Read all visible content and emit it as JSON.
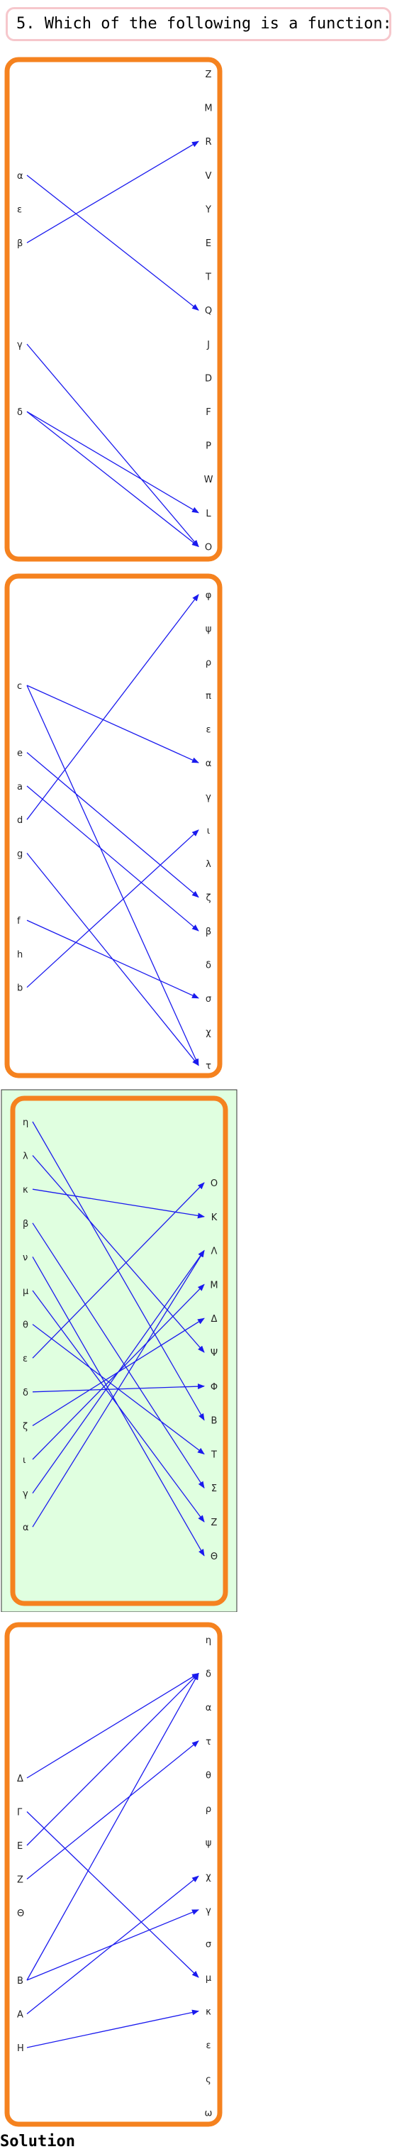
{
  "question": "5. Which of the following is a function:",
  "solution_label": "Solution",
  "colors": {
    "box_border": "#f5821f",
    "arrow": "#1a1aee",
    "highlight_fill": "#e0ffe0",
    "highlight_frame": "#333333"
  },
  "diagrams": [
    {
      "highlighted": false,
      "left": [
        "α",
        "ε",
        "β",
        "",
        "",
        "γ",
        "",
        "δ"
      ],
      "right": [
        "Z",
        "M",
        "R",
        "V",
        "Y",
        "E",
        "T",
        "Q",
        "J",
        "D",
        "F",
        "P",
        "W",
        "L",
        "O"
      ],
      "arrows": [
        [
          "α",
          "Q"
        ],
        [
          "β",
          "R"
        ],
        [
          "γ",
          "O"
        ],
        [
          "δ",
          "L"
        ],
        [
          "δ",
          "O"
        ]
      ]
    },
    {
      "highlighted": false,
      "left": [
        "c",
        "",
        "e",
        "a",
        "d",
        "g",
        "",
        "f",
        "h",
        "b"
      ],
      "right": [
        "φ",
        "ψ",
        "ρ",
        "π",
        "ε",
        "α",
        "γ",
        "ι",
        "λ",
        "ζ",
        "β",
        "δ",
        "σ",
        "χ",
        "τ"
      ],
      "arrows": [
        [
          "c",
          "α"
        ],
        [
          "c",
          "τ"
        ],
        [
          "e",
          "ζ"
        ],
        [
          "a",
          "β"
        ],
        [
          "d",
          "φ"
        ],
        [
          "g",
          "τ"
        ],
        [
          "f",
          "σ"
        ],
        [
          "b",
          "ι"
        ]
      ]
    },
    {
      "highlighted": true,
      "left": [
        "η",
        "λ",
        "κ",
        "β",
        "ν",
        "μ",
        "θ",
        "ε",
        "δ",
        "ζ",
        "ι",
        "γ",
        "α"
      ],
      "right": [
        "O",
        "K",
        "Λ",
        "M",
        "Δ",
        "Ψ",
        "Φ",
        "B",
        "T",
        "Σ",
        "Z",
        "Θ"
      ],
      "arrows": [
        [
          "η",
          "B"
        ],
        [
          "λ",
          "Ψ"
        ],
        [
          "κ",
          "K"
        ],
        [
          "β",
          "Σ"
        ],
        [
          "ν",
          "Θ"
        ],
        [
          "μ",
          "Z"
        ],
        [
          "θ",
          "T"
        ],
        [
          "ε",
          "O"
        ],
        [
          "δ",
          "Φ"
        ],
        [
          "ζ",
          "Δ"
        ],
        [
          "ι",
          "M"
        ],
        [
          "γ",
          "Λ"
        ],
        [
          "α",
          "Λ"
        ]
      ]
    },
    {
      "highlighted": false,
      "left": [
        "Δ",
        "Γ",
        "E",
        "Z",
        "Θ",
        "",
        "B",
        "A",
        "H"
      ],
      "right": [
        "η",
        "δ",
        "α",
        "τ",
        "θ",
        "ρ",
        "ψ",
        "χ",
        "γ",
        "σ",
        "μ",
        "κ",
        "ε",
        "ς",
        "ω"
      ],
      "arrows": [
        [
          "Δ",
          "δ"
        ],
        [
          "Γ",
          "μ"
        ],
        [
          "E",
          "δ"
        ],
        [
          "Z",
          "τ"
        ],
        [
          "B",
          "δ"
        ],
        [
          "B",
          "γ"
        ],
        [
          "A",
          "χ"
        ],
        [
          "H",
          "κ"
        ]
      ]
    }
  ]
}
